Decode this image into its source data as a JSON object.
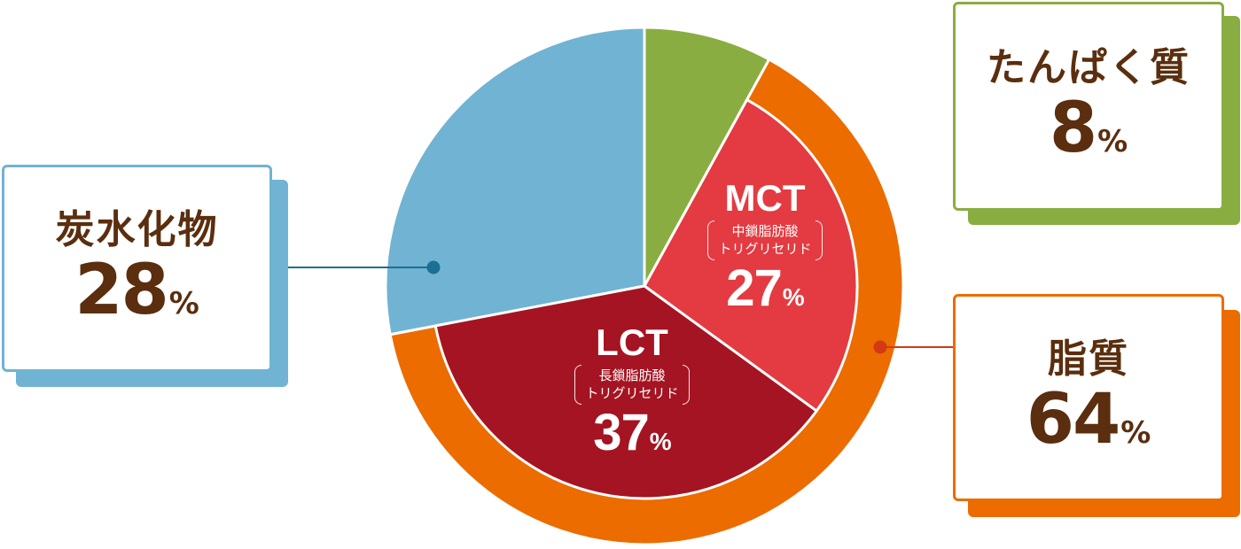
{
  "chart_data": {
    "type": "pie",
    "outer_ring": [
      {
        "name": "たんぱく質",
        "value": 8,
        "unit": "%",
        "color": "#8aad41"
      },
      {
        "name": "脂質",
        "value": 64,
        "unit": "%",
        "color": "#ec6c00"
      },
      {
        "name": "炭水化物",
        "value": 28,
        "unit": "%",
        "color": "#71b3d3"
      }
    ],
    "inner_segments": [
      {
        "name": "MCT",
        "subtitle_line1": "中鎖脂肪酸",
        "subtitle_line2": "トリグリセリド",
        "value": 27,
        "unit": "%",
        "color": "#e33b41"
      },
      {
        "name": "LCT",
        "subtitle_line1": "長鎖脂肪酸",
        "subtitle_line2": "トリグリセリド",
        "value": 37,
        "unit": "%",
        "color": "#a51422"
      }
    ],
    "legend": "callout boxes around the pie"
  },
  "colors": {
    "label_text": "#5a2e0e",
    "protein": "#8aad41",
    "fat": "#ec6c00",
    "carb": "#71b3d3",
    "mct": "#e33b41",
    "lct": "#a51422",
    "connector_carb": "#1b6f93",
    "connector_fat": "#d33a14"
  }
}
